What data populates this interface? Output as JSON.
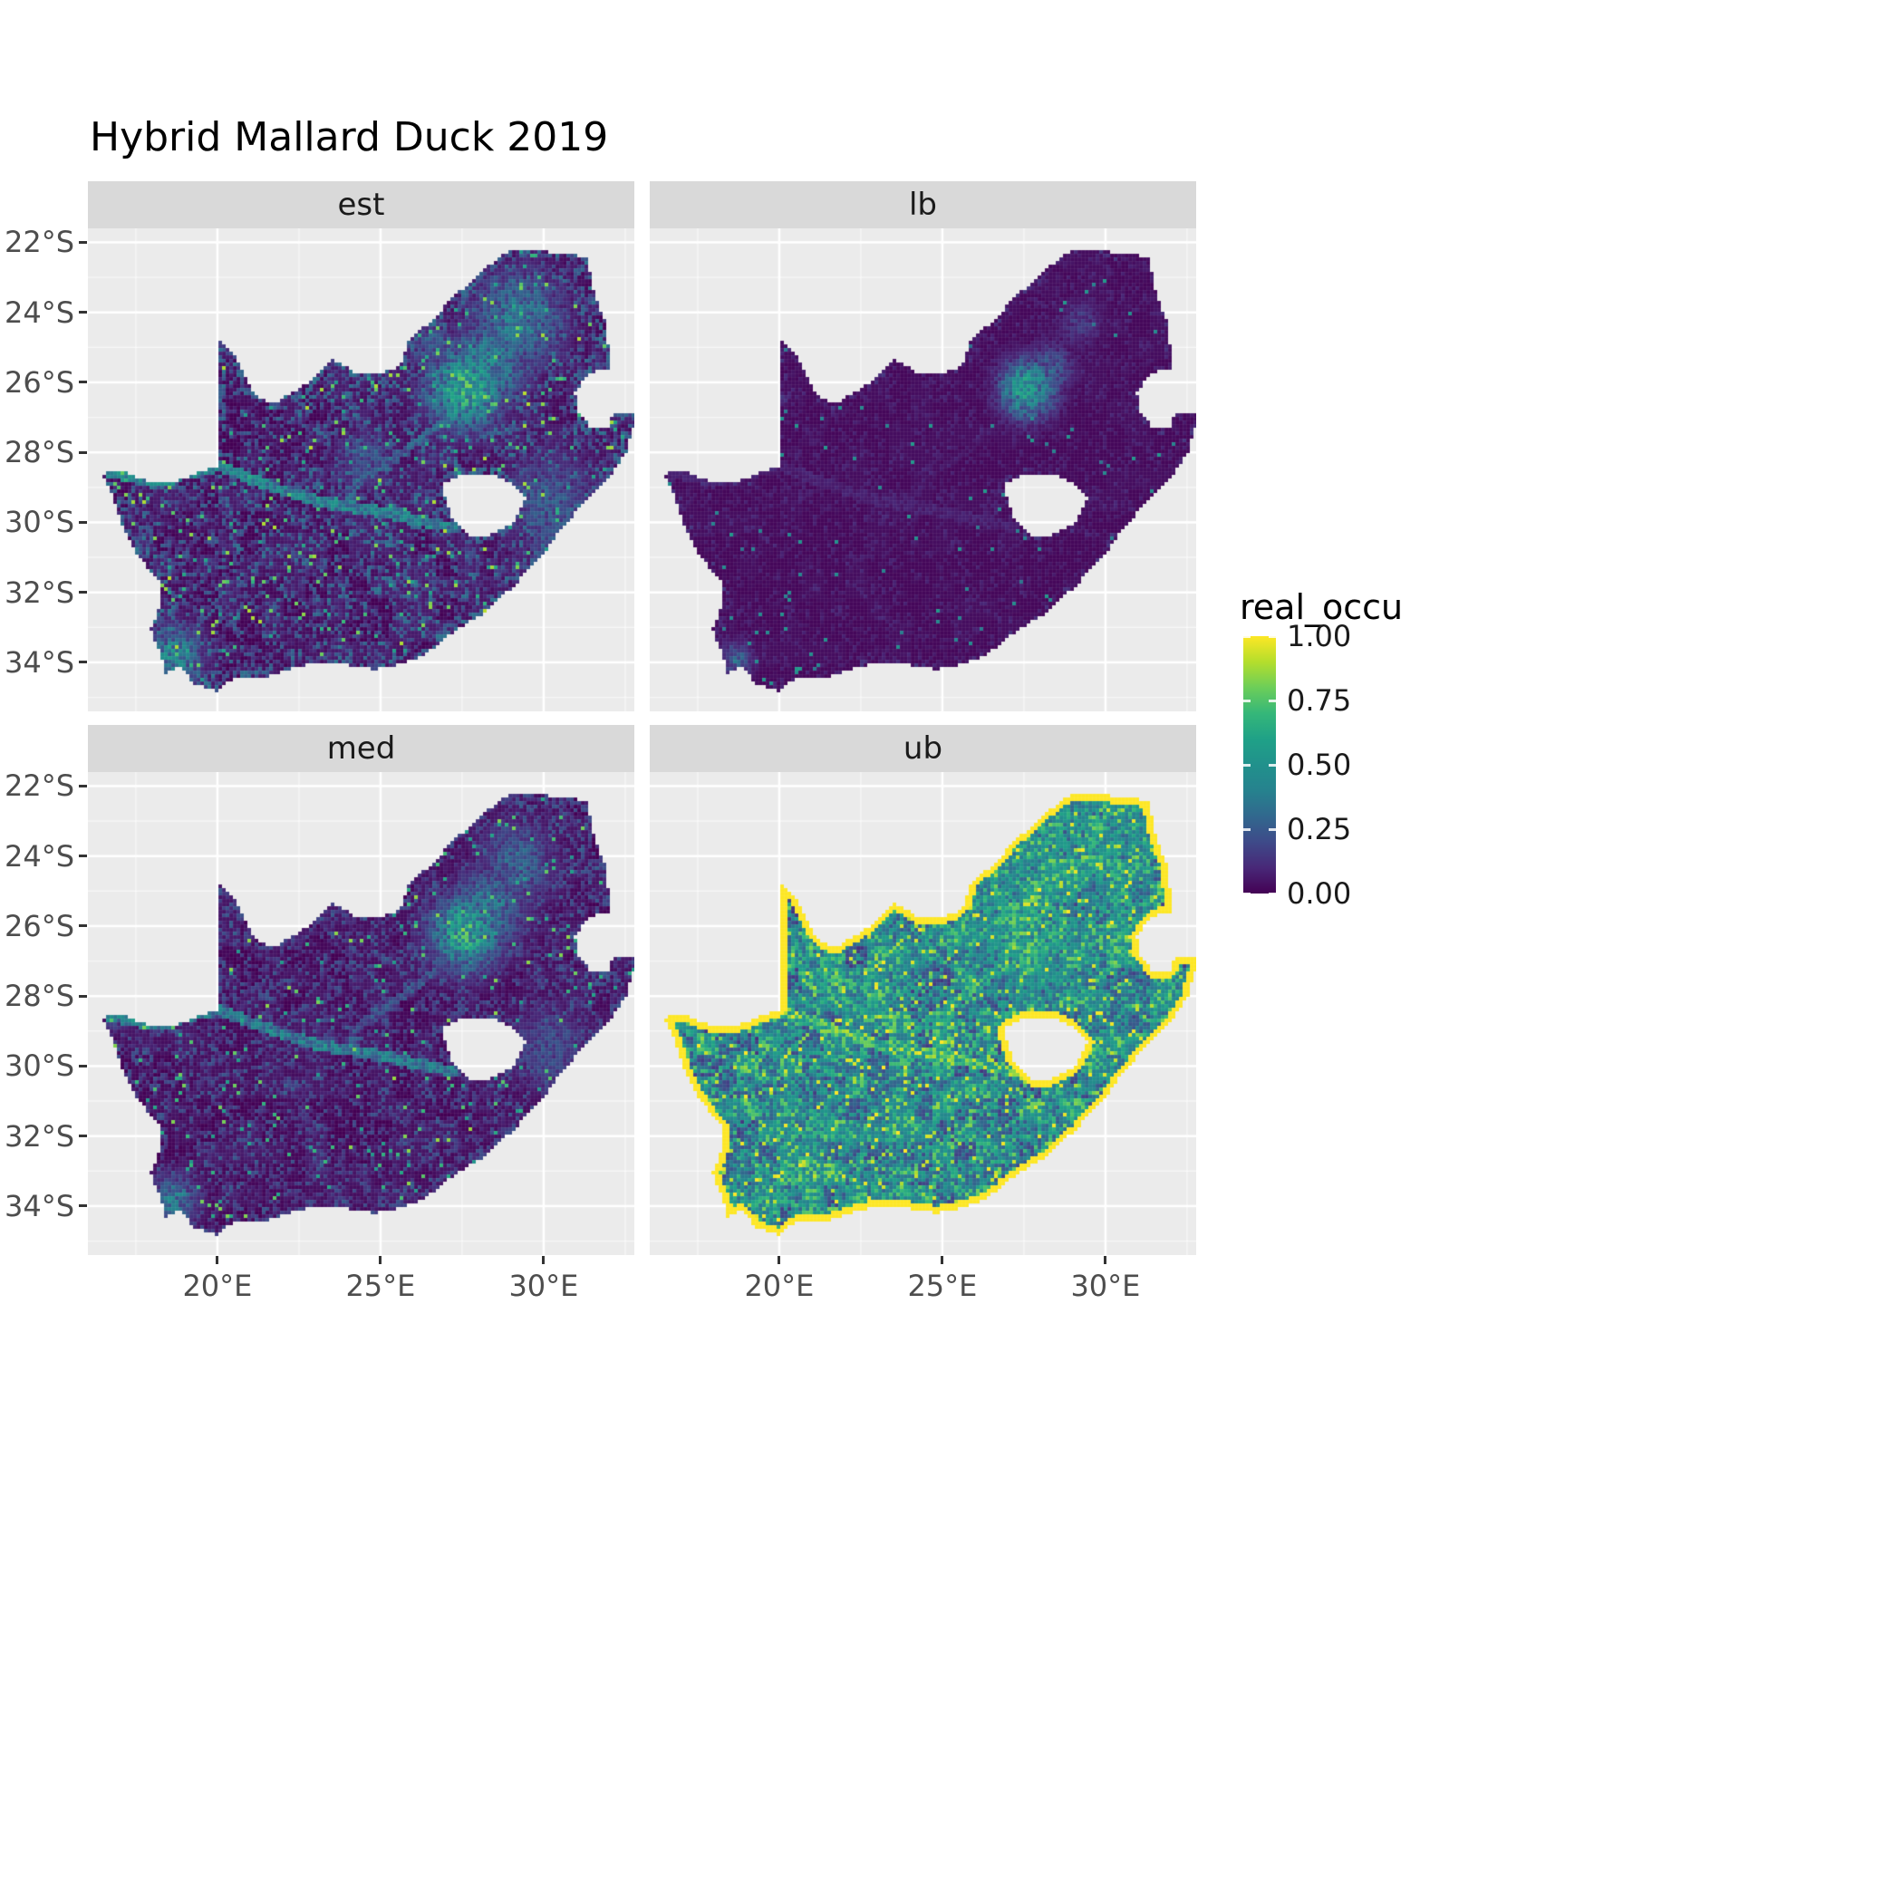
{
  "title": "Hybrid Mallard Duck 2019",
  "legend": {
    "title": "real_occu",
    "entries": [
      {
        "value": 1.0,
        "label": "1.00"
      },
      {
        "value": 0.75,
        "label": "0.75"
      },
      {
        "value": 0.5,
        "label": "0.50"
      },
      {
        "value": 0.25,
        "label": "0.25"
      },
      {
        "value": 0.0,
        "label": "0.00"
      }
    ]
  },
  "colors": {
    "background": "#FFFFFF",
    "panel_bg": "#EBEBEB",
    "strip_bg": "#D9D9D9",
    "grid": "#FFFFFF",
    "title_text": "#000000",
    "axis_text": "#4D4D4D",
    "tick_mark": "#333333",
    "strip_text": "#1A1A1A",
    "legend_text": "#1A1A1A"
  },
  "chart_data": {
    "type": "heatmap",
    "title": "Hybrid Mallard Duck 2019",
    "variable": "real_occu",
    "value_range": [
      0,
      1
    ],
    "region": "South Africa",
    "facets": [
      "est",
      "lb",
      "med",
      "ub"
    ],
    "colormap": "viridis",
    "legend_position": "right",
    "grid": true,
    "x": {
      "label": "",
      "range": [
        16.03,
        32.78
      ],
      "ticks": [
        {
          "value": 20,
          "label": "20°E"
        },
        {
          "value": 25,
          "label": "25°E"
        },
        {
          "value": 30,
          "label": "30°E"
        }
      ],
      "minor": [
        17.5,
        22.5,
        27.5,
        32.5
      ]
    },
    "y": {
      "label": "",
      "range": [
        -35.4,
        -21.6
      ],
      "ticks": [
        {
          "value": -22,
          "label": "22°S"
        },
        {
          "value": -24,
          "label": "24°S"
        },
        {
          "value": -26,
          "label": "26°S"
        },
        {
          "value": -28,
          "label": "28°S"
        },
        {
          "value": -30,
          "label": "30°S"
        },
        {
          "value": -32,
          "label": "32°S"
        },
        {
          "value": -34,
          "label": "34°S"
        }
      ],
      "minor": [
        -23,
        -25,
        -27,
        -29,
        -31,
        -33,
        -35
      ]
    },
    "viridis_stops": [
      [
        0.0,
        "#440154"
      ],
      [
        0.1,
        "#482878"
      ],
      [
        0.2,
        "#3E4A89"
      ],
      [
        0.3,
        "#31688E"
      ],
      [
        0.4,
        "#26828E"
      ],
      [
        0.5,
        "#21918C"
      ],
      [
        0.6,
        "#1FA187"
      ],
      [
        0.7,
        "#35B779"
      ],
      [
        0.8,
        "#6CCE59"
      ],
      [
        0.9,
        "#B4DE2C"
      ],
      [
        1.0,
        "#FDE725"
      ]
    ],
    "outline": [
      [
        16.45,
        -28.6
      ],
      [
        17.1,
        -28.55
      ],
      [
        17.6,
        -28.75
      ],
      [
        18.3,
        -28.9
      ],
      [
        19.1,
        -28.72
      ],
      [
        19.6,
        -28.5
      ],
      [
        20.0,
        -28.4
      ],
      [
        20.0,
        -27.2
      ],
      [
        19.98,
        -26.0
      ],
      [
        19.98,
        -24.77
      ],
      [
        20.45,
        -25.1
      ],
      [
        20.85,
        -25.8
      ],
      [
        21.15,
        -26.35
      ],
      [
        21.7,
        -26.65
      ],
      [
        22.25,
        -26.3
      ],
      [
        22.9,
        -25.95
      ],
      [
        23.5,
        -25.3
      ],
      [
        24.2,
        -25.7
      ],
      [
        25.0,
        -25.75
      ],
      [
        25.6,
        -25.55
      ],
      [
        25.9,
        -24.75
      ],
      [
        26.5,
        -24.3
      ],
      [
        27.2,
        -23.6
      ],
      [
        28.0,
        -22.9
      ],
      [
        29.0,
        -22.2
      ],
      [
        29.45,
        -22.17
      ],
      [
        30.3,
        -22.3
      ],
      [
        31.3,
        -22.4
      ],
      [
        31.6,
        -23.6
      ],
      [
        31.9,
        -24.3
      ],
      [
        32.0,
        -25.1
      ],
      [
        32.05,
        -25.6
      ],
      [
        31.4,
        -25.72
      ],
      [
        30.95,
        -26.3
      ],
      [
        31.1,
        -26.9
      ],
      [
        31.45,
        -27.3
      ],
      [
        31.97,
        -27.32
      ],
      [
        32.13,
        -26.86
      ],
      [
        32.89,
        -26.86
      ],
      [
        32.55,
        -27.95
      ],
      [
        32.05,
        -28.7
      ],
      [
        31.25,
        -29.45
      ],
      [
        30.65,
        -30.05
      ],
      [
        29.95,
        -30.95
      ],
      [
        29.15,
        -31.75
      ],
      [
        28.25,
        -32.55
      ],
      [
        27.35,
        -33.05
      ],
      [
        26.4,
        -33.75
      ],
      [
        25.65,
        -34.05
      ],
      [
        24.8,
        -34.2
      ],
      [
        23.6,
        -34.0
      ],
      [
        22.5,
        -34.1
      ],
      [
        21.5,
        -34.4
      ],
      [
        20.5,
        -34.45
      ],
      [
        20.0,
        -34.82
      ],
      [
        19.3,
        -34.62
      ],
      [
        18.8,
        -34.08
      ],
      [
        18.43,
        -34.35
      ],
      [
        18.3,
        -33.9
      ],
      [
        17.95,
        -33.05
      ],
      [
        18.25,
        -32.4
      ],
      [
        18.2,
        -31.65
      ],
      [
        17.6,
        -31.0
      ],
      [
        17.05,
        -30.0
      ],
      [
        16.8,
        -29.3
      ]
    ],
    "lesotho_hole": [
      [
        26.95,
        -28.9
      ],
      [
        27.55,
        -28.62
      ],
      [
        28.4,
        -28.6
      ],
      [
        29.1,
        -28.92
      ],
      [
        29.45,
        -29.35
      ],
      [
        29.1,
        -30.0
      ],
      [
        28.4,
        -30.35
      ],
      [
        27.75,
        -30.42
      ],
      [
        27.25,
        -29.95
      ],
      [
        26.98,
        -29.4
      ]
    ],
    "rivers": {
      "orange": [
        [
          16.6,
          -28.55
        ],
        [
          17.6,
          -28.75
        ],
        [
          18.3,
          -28.85
        ],
        [
          19.2,
          -28.55
        ],
        [
          20.1,
          -28.4
        ],
        [
          21.0,
          -28.75
        ],
        [
          21.9,
          -29.05
        ],
        [
          22.9,
          -29.35
        ],
        [
          24.0,
          -29.55
        ],
        [
          25.0,
          -29.7
        ],
        [
          26.2,
          -29.95
        ],
        [
          27.2,
          -30.15
        ]
      ],
      "vaal": [
        [
          28.15,
          -26.75
        ],
        [
          27.3,
          -26.95
        ],
        [
          26.6,
          -27.35
        ],
        [
          25.9,
          -27.85
        ],
        [
          25.1,
          -28.35
        ],
        [
          24.4,
          -28.8
        ],
        [
          24.0,
          -29.3
        ]
      ]
    },
    "facet_params": {
      "est": {
        "seed": 7,
        "base": 0.03,
        "noise": 0.3,
        "noise_pow": 3,
        "patch": 0.08,
        "speckle_prob": 0.035,
        "speckle": 0.9,
        "river": 0.55,
        "vaal": 0.35,
        "edge": 0.35,
        "edge_prob": 0.35,
        "hotspots": [
          [
            27.6,
            -26.2,
            0.8,
            0.9
          ],
          [
            28.3,
            -25.5,
            0.9,
            0.55
          ],
          [
            29.2,
            -24.2,
            1.0,
            0.5
          ],
          [
            18.7,
            -33.8,
            0.6,
            0.6
          ],
          [
            30.2,
            -29.5,
            1.0,
            0.35
          ],
          [
            26.6,
            -24.9,
            0.5,
            0.35
          ],
          [
            24.5,
            -28.2,
            0.6,
            0.3
          ]
        ]
      },
      "lb": {
        "seed": 19,
        "base": 0.02,
        "noise": 0.07,
        "noise_pow": 4,
        "patch": 0.02,
        "speckle_prob": 0.01,
        "speckle": 0.55,
        "river": 0.1,
        "vaal": 0.06,
        "edge": 0.15,
        "edge_prob": 0.12,
        "hotspots": [
          [
            27.6,
            -26.2,
            0.6,
            0.75
          ],
          [
            28.3,
            -25.6,
            0.5,
            0.35
          ],
          [
            29.2,
            -24.3,
            0.5,
            0.2
          ],
          [
            18.7,
            -33.9,
            0.35,
            0.4
          ]
        ]
      },
      "med": {
        "seed": 31,
        "base": 0.025,
        "noise": 0.22,
        "noise_pow": 3,
        "patch": 0.06,
        "speckle_prob": 0.025,
        "speckle": 0.85,
        "river": 0.5,
        "vaal": 0.3,
        "edge": 0.22,
        "edge_prob": 0.25,
        "hotspots": [
          [
            27.6,
            -26.2,
            0.75,
            0.85
          ],
          [
            28.3,
            -25.5,
            0.8,
            0.5
          ],
          [
            29.2,
            -24.2,
            0.8,
            0.4
          ],
          [
            18.7,
            -33.8,
            0.5,
            0.5
          ],
          [
            30.2,
            -29.5,
            0.9,
            0.28
          ]
        ]
      },
      "ub": {
        "seed": 43,
        "base": 0.27,
        "noise": 0.45,
        "noise_pow": 1.5,
        "patch": 0.3,
        "speckle_prob": 0.12,
        "speckle": 1.0,
        "river": 0.95,
        "vaal": 0.8,
        "edge": 1.0,
        "edge_prob": 1.0,
        "hotspots": [
          [
            27.6,
            -26.2,
            1.6,
            0.85
          ],
          [
            29.3,
            -23.8,
            1.7,
            0.65
          ],
          [
            29.9,
            -22.8,
            1.2,
            0.6
          ],
          [
            22.0,
            -31.6,
            3.2,
            0.35
          ],
          [
            19.0,
            -33.6,
            1.2,
            0.5
          ],
          [
            29.9,
            -30.6,
            1.5,
            0.5
          ],
          [
            30.6,
            -28.3,
            1.0,
            0.4
          ]
        ]
      }
    }
  }
}
